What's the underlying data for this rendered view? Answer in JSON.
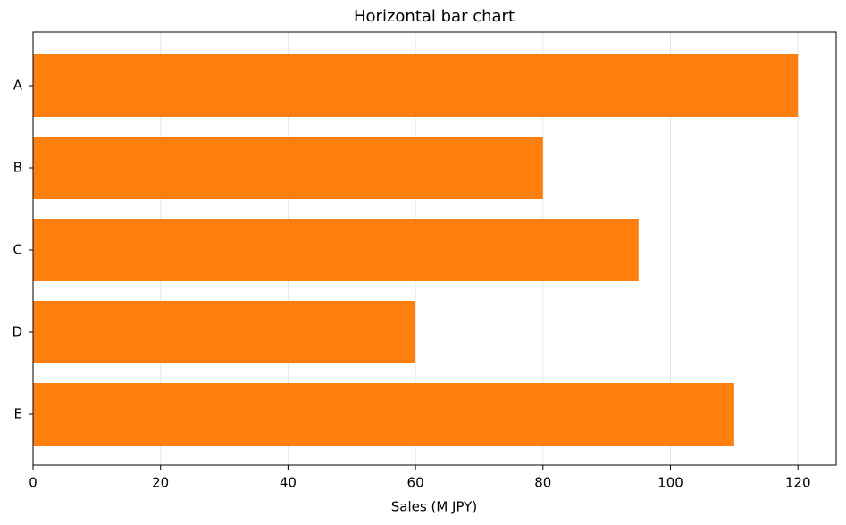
{
  "chart_data": {
    "type": "barh",
    "title": "Horizontal bar chart",
    "categories": [
      "A",
      "B",
      "C",
      "D",
      "E"
    ],
    "values": [
      120,
      80,
      95,
      60,
      110
    ],
    "color": "#ff7f0e",
    "xlabel": "Sales (M JPY)",
    "xlim": [
      0,
      126
    ],
    "xticks": [
      0,
      20,
      40,
      60,
      80,
      100,
      120
    ],
    "grid": true
  }
}
